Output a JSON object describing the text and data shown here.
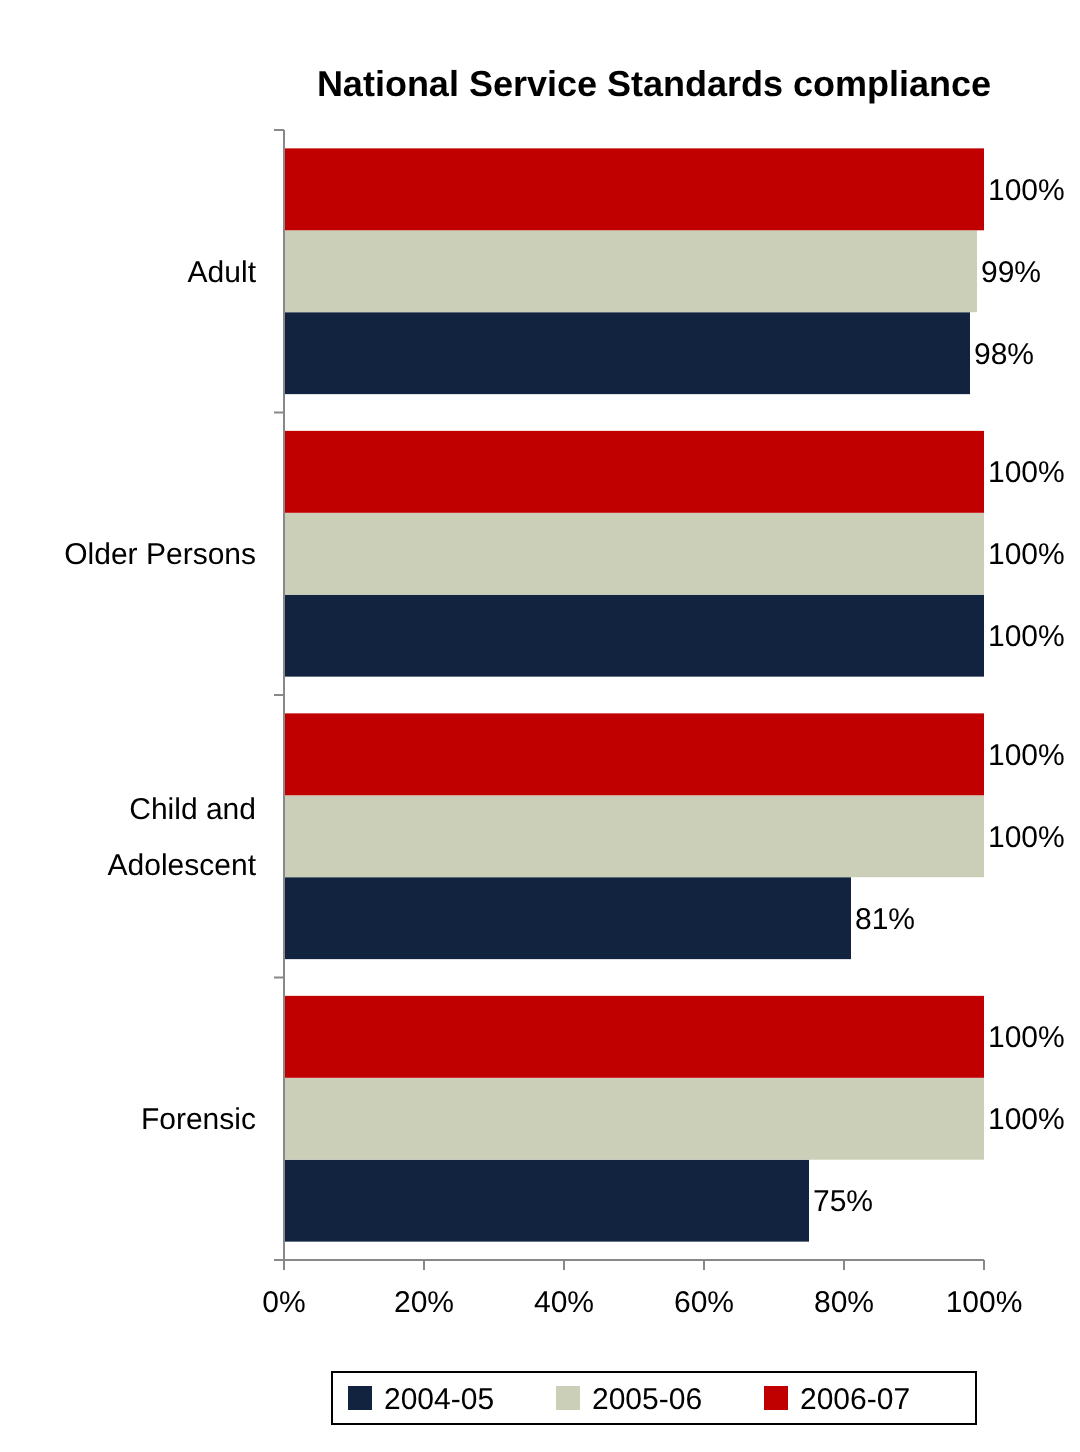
{
  "chart_data": {
    "type": "bar",
    "orientation": "horizontal",
    "title": "National Service Standards compliance",
    "categories": [
      "Adult",
      "Older Persons",
      "Child and Adolescent",
      "Forensic"
    ],
    "series": [
      {
        "name": "2004-05",
        "color": "#12233f",
        "values": [
          98,
          100,
          81,
          75
        ],
        "value_labels": [
          "98%",
          "100%",
          "81%",
          "75%"
        ]
      },
      {
        "name": "2005-06",
        "color": "#cccfb8",
        "values": [
          99,
          100,
          100,
          100
        ],
        "value_labels": [
          "99%",
          "100%",
          "100%",
          "100%"
        ]
      },
      {
        "name": "2006-07",
        "color": "#c00000",
        "values": [
          100,
          100,
          100,
          100
        ],
        "value_labels": [
          "100%",
          "100%",
          "100%",
          "100%"
        ]
      }
    ],
    "xlim": [
      0,
      100
    ],
    "xticks": [
      {
        "value": 0,
        "label": "0%"
      },
      {
        "value": 20,
        "label": "20%"
      },
      {
        "value": 40,
        "label": "40%"
      },
      {
        "value": 60,
        "label": "60%"
      },
      {
        "value": 80,
        "label": "80%"
      },
      {
        "value": 100,
        "label": "100%"
      }
    ],
    "grid": false,
    "legend": "bottom"
  }
}
